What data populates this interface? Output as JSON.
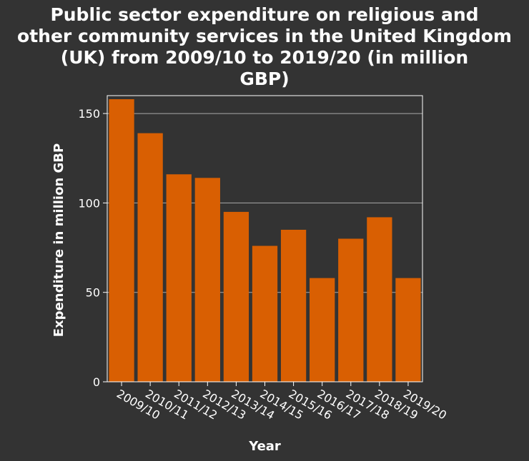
{
  "chart_data": {
    "type": "bar",
    "title": "Public sector expenditure on religious and\nother community services in the United Kingdom\n(UK) from 2009/10 to 2019/20 (in million\nGBP)",
    "xlabel": "Year",
    "ylabel": "Expenditure in million GBP",
    "categories": [
      "2009/10",
      "2010/11",
      "2011/12",
      "2012/13",
      "2013/14",
      "2014/15",
      "2015/16",
      "2016/17",
      "2017/18",
      "2018/19",
      "2019/20"
    ],
    "values": [
      158,
      139,
      116,
      114,
      95,
      76,
      85,
      58,
      80,
      92,
      58
    ],
    "ylim": [
      0,
      160
    ],
    "yticks": [
      0,
      50,
      100,
      150
    ],
    "grid": true,
    "colors": {
      "bar": "#d95f02",
      "background": "#333333",
      "text": "#ffffff",
      "gridline": "#aaaaaa",
      "frame": "#ffffff"
    }
  }
}
